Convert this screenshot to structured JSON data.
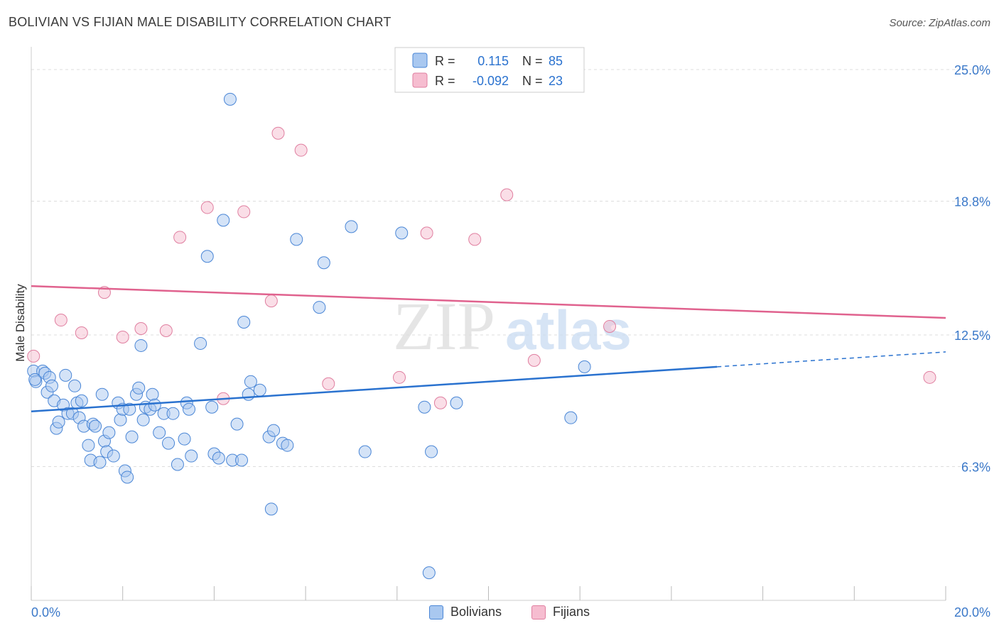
{
  "title": "BOLIVIAN VS FIJIAN MALE DISABILITY CORRELATION CHART",
  "source": "Source: ZipAtlas.com",
  "watermark": {
    "zip": "ZIP",
    "atlas": "atlas"
  },
  "colors": {
    "blue_fill": "#a9c8f0",
    "blue_stroke": "#4a86d6",
    "blue_line": "#2a72cf",
    "pink_fill": "#f6bdd0",
    "pink_stroke": "#e07fa0",
    "pink_line": "#e0628e",
    "tick_label": "#3a78c9",
    "grid": "#dddddd"
  },
  "legend": {
    "rows": [
      {
        "r_label": "R =",
        "r_value": "0.115",
        "n_label": "N =",
        "n_value": "85"
      },
      {
        "r_label": "R =",
        "r_value": "-0.092",
        "n_label": "N =",
        "n_value": "23"
      }
    ]
  },
  "bottom_legend": {
    "bolivians": "Bolivians",
    "fijians": "Fijians"
  },
  "chart_data": {
    "type": "scatter",
    "title": "BOLIVIAN VS FIJIAN MALE DISABILITY CORRELATION CHART",
    "xlabel": "",
    "ylabel": "Male Disability",
    "xlim": [
      0,
      20
    ],
    "ylim": [
      0,
      25.6
    ],
    "x_tick_labels": [
      "0.0%",
      "20.0%"
    ],
    "y_ticks": [
      6.3,
      12.5,
      18.8,
      25.0
    ],
    "y_tick_labels": [
      "6.3%",
      "12.5%",
      "18.8%",
      "25.0%"
    ],
    "grid": true,
    "legend_position": "top-center",
    "series": [
      {
        "name": "Bolivians",
        "r": 0.115,
        "n": 85,
        "trend": {
          "x0": 0,
          "y0": 8.9,
          "x1": 15,
          "y1": 11.0,
          "dash_to_x": 20,
          "dash_to_y": 11.7
        },
        "points": [
          [
            0.05,
            10.8
          ],
          [
            0.1,
            10.3
          ],
          [
            0.25,
            10.8
          ],
          [
            0.3,
            10.7
          ],
          [
            0.35,
            9.8
          ],
          [
            0.4,
            10.5
          ],
          [
            0.45,
            10.1
          ],
          [
            0.5,
            9.4
          ],
          [
            0.55,
            8.1
          ],
          [
            0.6,
            8.4
          ],
          [
            0.7,
            9.2
          ],
          [
            0.75,
            10.6
          ],
          [
            0.8,
            8.8
          ],
          [
            0.9,
            8.8
          ],
          [
            0.95,
            10.1
          ],
          [
            1.0,
            9.3
          ],
          [
            1.05,
            8.6
          ],
          [
            1.1,
            9.4
          ],
          [
            1.15,
            8.2
          ],
          [
            1.25,
            7.3
          ],
          [
            1.3,
            6.6
          ],
          [
            1.35,
            8.3
          ],
          [
            1.4,
            8.2
          ],
          [
            1.5,
            6.5
          ],
          [
            1.55,
            9.7
          ],
          [
            1.6,
            7.5
          ],
          [
            1.65,
            7.0
          ],
          [
            1.7,
            7.9
          ],
          [
            1.8,
            6.8
          ],
          [
            1.9,
            9.3
          ],
          [
            1.95,
            8.5
          ],
          [
            2.0,
            9.0
          ],
          [
            2.05,
            6.1
          ],
          [
            2.1,
            5.8
          ],
          [
            2.15,
            9.0
          ],
          [
            2.2,
            7.7
          ],
          [
            2.3,
            9.7
          ],
          [
            2.35,
            10.0
          ],
          [
            2.4,
            12.0
          ],
          [
            2.45,
            8.5
          ],
          [
            2.5,
            9.1
          ],
          [
            2.6,
            9.0
          ],
          [
            2.65,
            9.7
          ],
          [
            2.7,
            9.2
          ],
          [
            2.8,
            7.9
          ],
          [
            2.9,
            8.8
          ],
          [
            3.0,
            7.4
          ],
          [
            3.1,
            8.8
          ],
          [
            3.2,
            6.4
          ],
          [
            3.35,
            7.6
          ],
          [
            3.4,
            9.3
          ],
          [
            3.45,
            9.0
          ],
          [
            3.5,
            6.8
          ],
          [
            3.7,
            12.1
          ],
          [
            3.85,
            16.2
          ],
          [
            3.95,
            9.1
          ],
          [
            4.0,
            6.9
          ],
          [
            4.1,
            6.7
          ],
          [
            4.2,
            17.9
          ],
          [
            4.35,
            23.6
          ],
          [
            4.4,
            6.6
          ],
          [
            4.5,
            8.3
          ],
          [
            4.6,
            6.6
          ],
          [
            4.65,
            13.1
          ],
          [
            4.75,
            9.7
          ],
          [
            4.8,
            10.3
          ],
          [
            5.0,
            9.9
          ],
          [
            5.2,
            7.7
          ],
          [
            5.25,
            4.3
          ],
          [
            5.3,
            8.0
          ],
          [
            5.5,
            7.4
          ],
          [
            5.6,
            7.3
          ],
          [
            5.8,
            17.0
          ],
          [
            6.3,
            13.8
          ],
          [
            6.4,
            15.9
          ],
          [
            7.0,
            17.6
          ],
          [
            7.3,
            7.0
          ],
          [
            8.1,
            17.3
          ],
          [
            8.6,
            9.1
          ],
          [
            8.7,
            1.3
          ],
          [
            8.75,
            7.0
          ],
          [
            9.3,
            9.3
          ],
          [
            11.8,
            8.6
          ],
          [
            12.1,
            11.0
          ],
          [
            0.08,
            10.4
          ]
        ]
      },
      {
        "name": "Fijians",
        "r": -0.092,
        "n": 23,
        "trend": {
          "x0": 0,
          "y0": 14.8,
          "x1": 20,
          "y1": 13.3
        },
        "points": [
          [
            0.05,
            11.5
          ],
          [
            0.65,
            13.2
          ],
          [
            1.1,
            12.6
          ],
          [
            1.6,
            14.5
          ],
          [
            2.0,
            12.4
          ],
          [
            2.4,
            12.8
          ],
          [
            2.95,
            12.7
          ],
          [
            3.25,
            17.1
          ],
          [
            3.85,
            18.5
          ],
          [
            4.2,
            9.5
          ],
          [
            4.65,
            18.3
          ],
          [
            5.25,
            14.1
          ],
          [
            5.4,
            22.0
          ],
          [
            5.9,
            21.2
          ],
          [
            6.5,
            10.2
          ],
          [
            8.05,
            10.5
          ],
          [
            8.65,
            17.3
          ],
          [
            8.95,
            9.3
          ],
          [
            9.7,
            17.0
          ],
          [
            10.4,
            19.1
          ],
          [
            11.0,
            11.3
          ],
          [
            12.65,
            12.9
          ],
          [
            19.65,
            10.5
          ]
        ]
      }
    ]
  }
}
